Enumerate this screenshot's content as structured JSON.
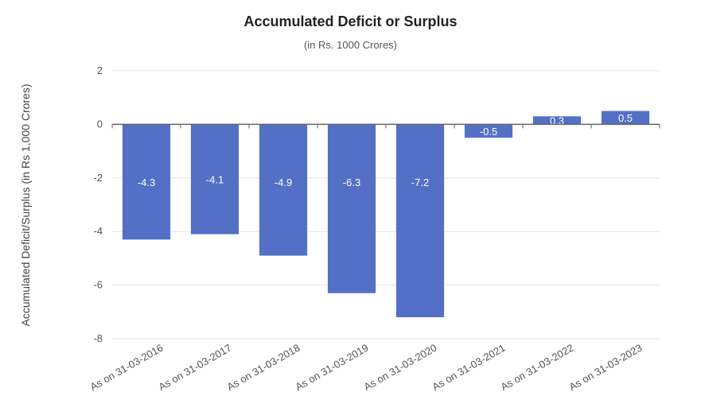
{
  "chart_data": {
    "type": "bar",
    "title": "Accumulated Deficit or Surplus",
    "subtitle": "(in Rs. 1000 Crores)",
    "xlabel": "",
    "ylabel": "Accumulated Deficit/Surplus (in Rs 1,000 Crores)",
    "categories": [
      "As on 31-03-2016",
      "As on 31-03-2017",
      "As on 31-03-2018",
      "As on 31-03-2019",
      "As on 31-03-2020",
      "As on 31-03-2021",
      "As on 31-03-2022",
      "As on 31-03-2023"
    ],
    "values": [
      -4.3,
      -4.1,
      -4.9,
      -6.3,
      -7.2,
      -0.5,
      0.3,
      0.5
    ],
    "data_labels": [
      "-4.3",
      "-4.1",
      "-4.9",
      "-6.3",
      "-7.2",
      "-0.5",
      "0.3",
      "0.5"
    ],
    "ylim": [
      -8,
      2
    ],
    "yticks": [
      "2",
      "0",
      "-2",
      "-4",
      "-6",
      "-8"
    ],
    "grid": true,
    "legend": "none",
    "colors": {
      "bar": "#5470c6",
      "grid": "#e6e6e6",
      "axis": "#666666"
    }
  }
}
